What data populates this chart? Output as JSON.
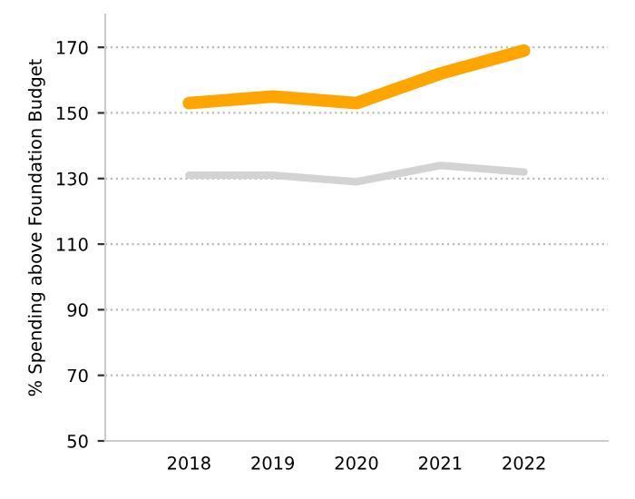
{
  "chart_data": {
    "type": "line",
    "ylabel": "% Spending above Foundation Budget",
    "categories": [
      "2018",
      "2019",
      "2020",
      "2021",
      "2022"
    ],
    "series": [
      {
        "color": "#ffa500",
        "values": [
          153,
          155,
          153,
          162,
          169
        ]
      },
      {
        "color": "#d3d3d3",
        "values": [
          131,
          131,
          129,
          134,
          132
        ]
      }
    ],
    "ylim": [
      50,
      180
    ],
    "yticks": [
      50,
      70,
      90,
      110,
      130,
      150,
      170
    ],
    "grid": "y",
    "marker": "none",
    "line_style": "solid"
  }
}
